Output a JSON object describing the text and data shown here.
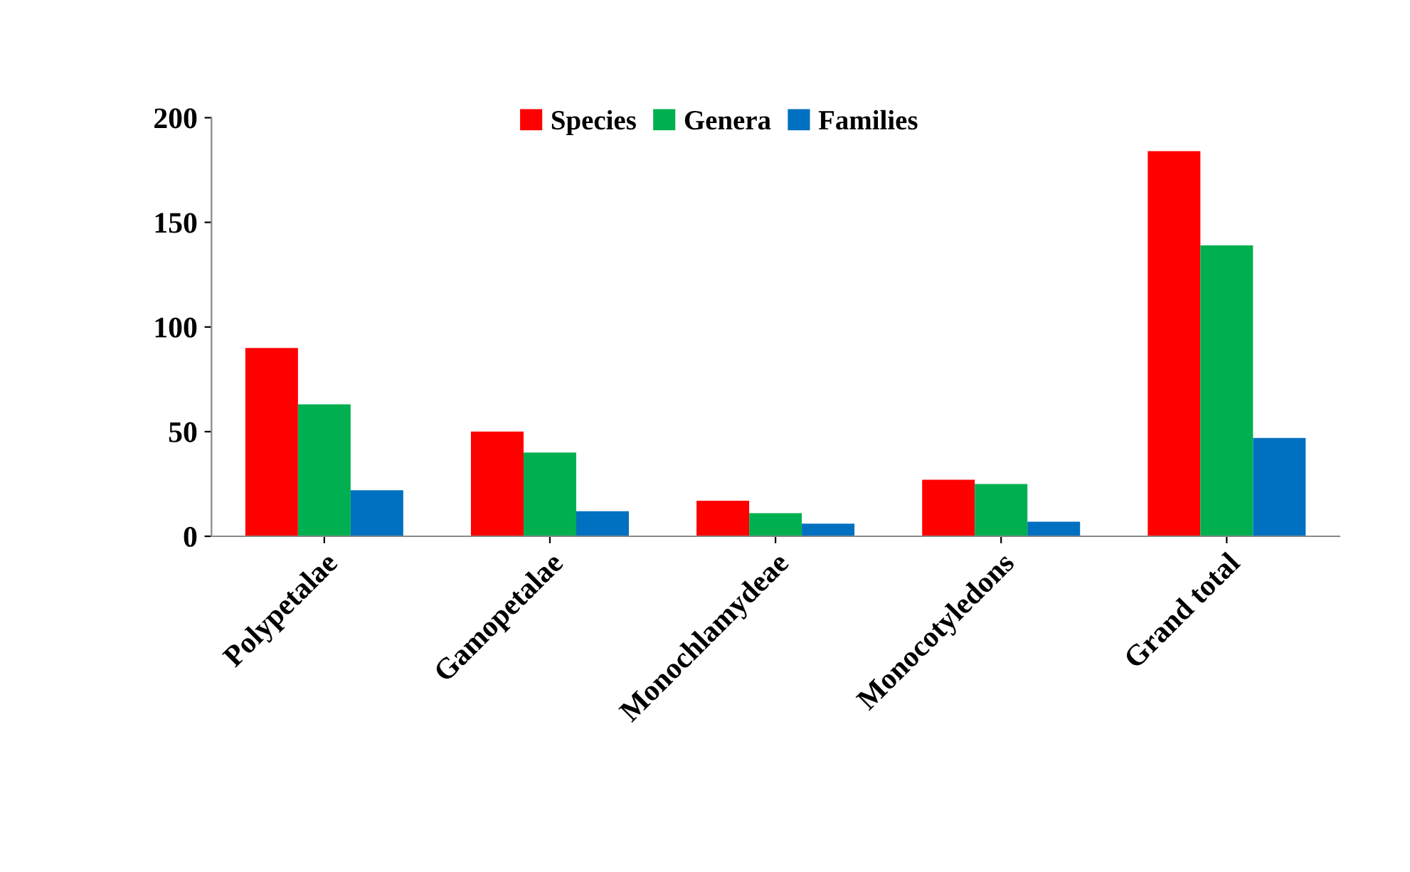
{
  "chart_data": {
    "type": "bar",
    "categories": [
      "Polypetalae",
      "Gamopetalae",
      "Monochlamydeae",
      "Monocotyledons",
      "Grand total"
    ],
    "series": [
      {
        "name": "Species",
        "color": "#ff0000",
        "values": [
          90,
          50,
          17,
          27,
          184
        ]
      },
      {
        "name": "Genera",
        "color": "#00b050",
        "values": [
          63,
          40,
          11,
          25,
          139
        ]
      },
      {
        "name": "Families",
        "color": "#0070c0",
        "values": [
          22,
          12,
          6,
          7,
          47
        ]
      }
    ],
    "ylim": [
      0,
      200
    ],
    "yticks": [
      0,
      50,
      100,
      150,
      200
    ],
    "grid": false,
    "legend": "top"
  }
}
